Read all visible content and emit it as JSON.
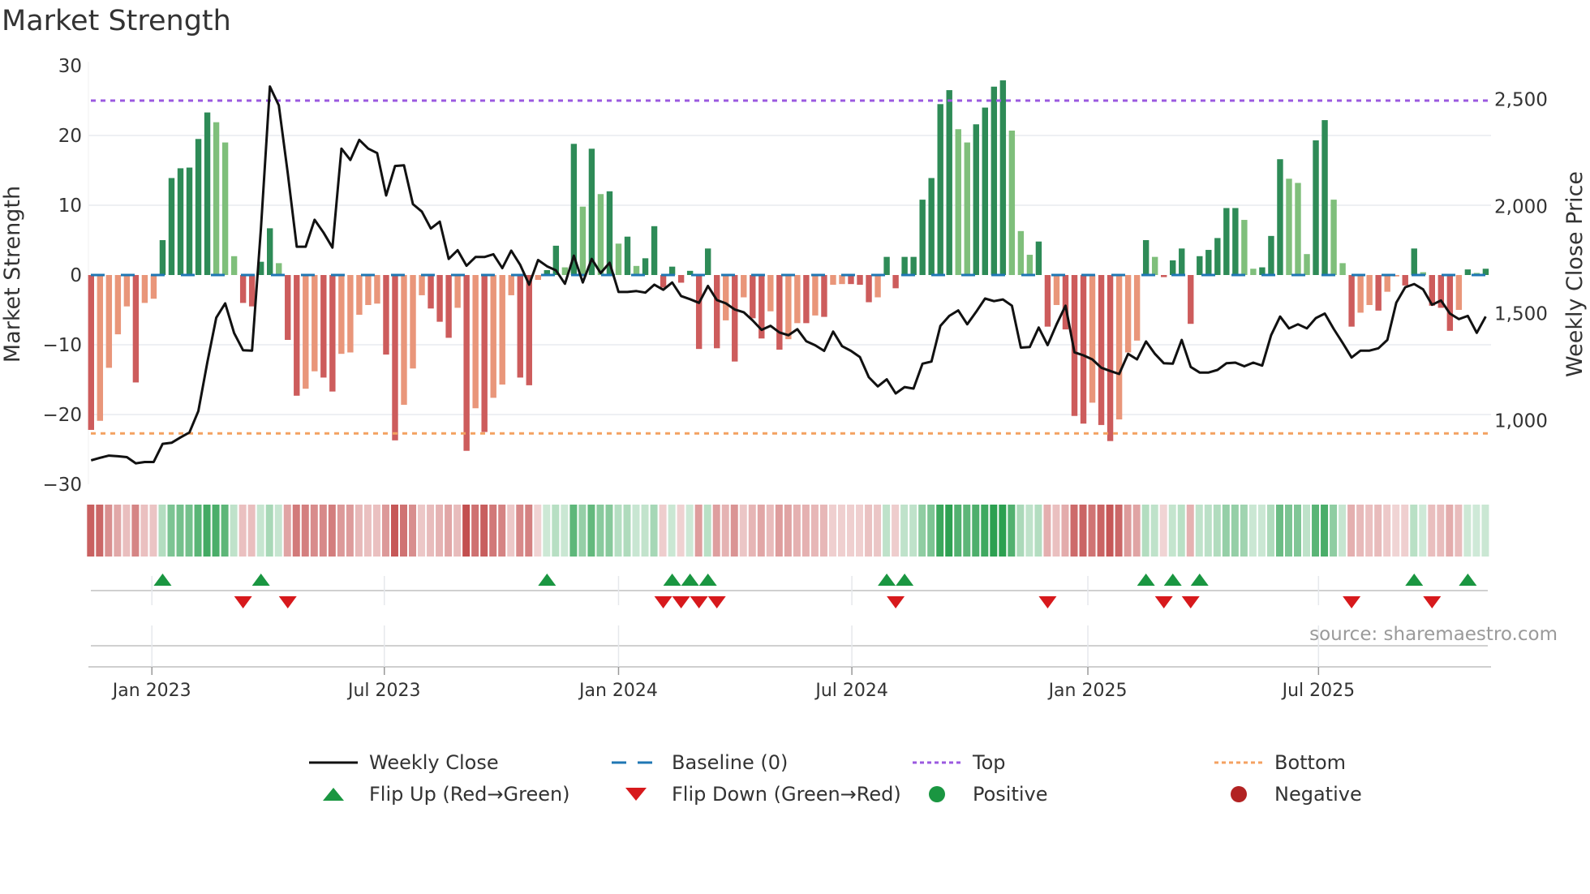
{
  "title": "Market Strength",
  "source": "source: sharemaestro.com",
  "colors": {
    "pos_dark": "#2e8b57",
    "pos_light": "#7fbf7b",
    "neg_dark": "#cd5c5c",
    "neg_light": "#e9967a",
    "baseline": "#1f77b4",
    "top": "#9b59e0",
    "bottom": "#f4a261",
    "flip_up": "#1a9641",
    "flip_down": "#d7191c",
    "positive": "#1a9641",
    "negative": "#b22222",
    "close": "#111111"
  },
  "legend": [
    {
      "label": "Weekly Close",
      "kind": "line"
    },
    {
      "label": "Baseline (0)",
      "kind": "dash"
    },
    {
      "label": "Top",
      "kind": "dot-top"
    },
    {
      "label": "Bottom",
      "kind": "dot-bottom"
    },
    {
      "label": "Flip Up (Red→Green)",
      "kind": "tri-up"
    },
    {
      "label": "Flip Down (Green→Red)",
      "kind": "tri-down"
    },
    {
      "label": "Positive",
      "kind": "dot-pos"
    },
    {
      "label": "Negative",
      "kind": "dot-neg"
    }
  ],
  "chart_data": {
    "type": "bar+line",
    "title": "Market Strength",
    "ylabel": "Market Strength",
    "y2label": "Weekly Close Price",
    "ylim": [
      -30,
      30
    ],
    "y2lim": [
      703,
      2657
    ],
    "yticks": [
      {
        "v": 30,
        "label": "30"
      },
      {
        "v": 20,
        "label": "20"
      },
      {
        "v": 10,
        "label": "10"
      },
      {
        "v": 0,
        "label": "0"
      },
      {
        "v": -10,
        "label": "−10"
      },
      {
        "v": -20,
        "label": "−20"
      },
      {
        "v": -30,
        "label": "−30"
      }
    ],
    "y2ticks": [
      {
        "v": 2500,
        "label": "2,500"
      },
      {
        "v": 2000,
        "label": "2,000"
      },
      {
        "v": 1500,
        "label": "1,500"
      },
      {
        "v": 1000,
        "label": "1,000"
      }
    ],
    "xticks": [
      {
        "week": 7.8,
        "label": "Jan 2023"
      },
      {
        "week": 33.8,
        "label": "Jul 2023"
      },
      {
        "week": 60.0,
        "label": "Jan 2024"
      },
      {
        "week": 86.1,
        "label": "Jul 2024"
      },
      {
        "week": 112.5,
        "label": "Jan 2025"
      },
      {
        "week": 138.3,
        "label": "Jul 2025"
      }
    ],
    "baseline": 0,
    "top": 25,
    "bottom": -22.7,
    "grid": true,
    "legend_position": "bottom",
    "strength": [
      -22.2,
      -20.9,
      -13.3,
      -8.5,
      -4.5,
      -15.4,
      -4.0,
      -3.4,
      5.0,
      13.9,
      15.3,
      15.4,
      19.5,
      23.3,
      21.9,
      19.0,
      2.7,
      -4.0,
      -4.5,
      1.9,
      6.7,
      1.7,
      -9.3,
      -17.3,
      -16.3,
      -13.8,
      -14.7,
      -16.7,
      -11.3,
      -11.1,
      -5.7,
      -4.3,
      -4.1,
      -11.4,
      -23.7,
      -18.6,
      -13.4,
      -2.9,
      -4.8,
      -6.7,
      -9.0,
      -4.7,
      -25.2,
      -19.1,
      -22.5,
      -17.6,
      -15.7,
      -2.9,
      -14.7,
      -15.8,
      -0.7,
      0.7,
      4.2,
      1.1,
      18.8,
      9.8,
      18.1,
      11.6,
      12.0,
      4.5,
      5.5,
      1.3,
      2.4,
      7.0,
      -1.8,
      1.2,
      -1.1,
      0.6,
      -10.6,
      3.8,
      -10.5,
      -6.5,
      -12.4,
      -3.2,
      -6.2,
      -9.1,
      -5.2,
      -10.7,
      -9.2,
      -6.9,
      -6.9,
      -5.8,
      -6.0,
      -1.4,
      -1.3,
      -1.3,
      -1.4,
      -3.9,
      -3.2,
      2.6,
      -1.9,
      2.6,
      2.6,
      10.8,
      13.9,
      24.5,
      26.5,
      20.9,
      19.0,
      21.6,
      24.0,
      27.0,
      27.9,
      20.7,
      6.3,
      2.9,
      4.8,
      -7.4,
      -4.3,
      -7.8,
      -20.2,
      -21.3,
      -18.3,
      -21.5,
      -23.8,
      -20.7,
      -11.1,
      -9.4,
      5.0,
      2.6,
      -0.3,
      2.1,
      3.8,
      -7.0,
      2.7,
      3.6,
      5.3,
      9.6,
      9.6,
      7.9,
      0.9,
      1.1,
      5.6,
      16.6,
      13.8,
      13.2,
      3.0,
      19.3,
      22.2,
      10.8,
      1.7,
      -7.4,
      -5.4,
      -4.3,
      -5.1,
      -2.4,
      -0.2,
      -1.5,
      3.8,
      0.4,
      -4.4,
      -4.7,
      -8.0,
      -5.0,
      0.8,
      0.3,
      0.9
    ],
    "close": [
      815,
      827,
      837,
      834,
      830,
      801,
      807,
      807,
      892,
      897,
      922,
      945,
      1045,
      1273,
      1481,
      1548,
      1409,
      1329,
      1327,
      1900,
      2560,
      2472,
      2156,
      1812,
      1812,
      1938,
      1878,
      1808,
      2270,
      2217,
      2311,
      2270,
      2249,
      2051,
      2189,
      2192,
      2011,
      1976,
      1897,
      1929,
      1755,
      1796,
      1723,
      1764,
      1764,
      1777,
      1712,
      1794,
      1727,
      1635,
      1750,
      1721,
      1702,
      1639,
      1770,
      1645,
      1755,
      1689,
      1737,
      1601,
      1601,
      1605,
      1598,
      1635,
      1611,
      1645,
      1582,
      1567,
      1550,
      1629,
      1563,
      1548,
      1519,
      1506,
      1468,
      1424,
      1443,
      1412,
      1399,
      1427,
      1371,
      1352,
      1326,
      1416,
      1348,
      1326,
      1297,
      1203,
      1160,
      1193,
      1127,
      1157,
      1150,
      1266,
      1276,
      1442,
      1489,
      1515,
      1450,
      1508,
      1570,
      1558,
      1566,
      1537,
      1341,
      1344,
      1435,
      1353,
      1450,
      1537,
      1319,
      1305,
      1286,
      1247,
      1232,
      1218,
      1312,
      1286,
      1370,
      1312,
      1268,
      1266,
      1377,
      1251,
      1225,
      1225,
      1237,
      1268,
      1271,
      1254,
      1271,
      1257,
      1399,
      1486,
      1431,
      1450,
      1431,
      1479,
      1500,
      1428,
      1363,
      1295,
      1327,
      1327,
      1338,
      1377,
      1551,
      1623,
      1638,
      1613,
      1541,
      1561,
      1500,
      1474,
      1489,
      1410,
      1486
    ],
    "flips_up": [
      9,
      20,
      52,
      66,
      68,
      70,
      90,
      92,
      119,
      122,
      125,
      149,
      155
    ],
    "flips_down": [
      18,
      23,
      65,
      67,
      69,
      71,
      91,
      108,
      121,
      124,
      142,
      151
    ]
  }
}
